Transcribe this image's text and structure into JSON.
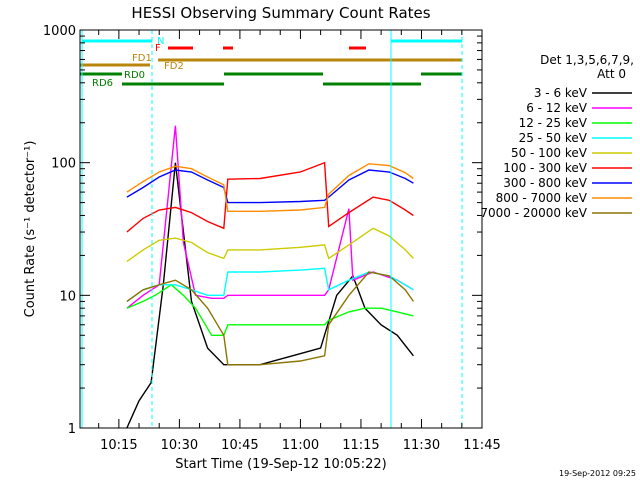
{
  "chart_data": {
    "type": "line",
    "title": "HESSI Observing Summary Count Rates",
    "xlabel": "Start Time (19-Sep-12 10:05:22)",
    "ylabel": "Count Rate (s⁻¹ detector⁻¹)",
    "y_scale": "log",
    "ylim": [
      1,
      1000
    ],
    "xlim": [
      "10:05:22",
      "11:45:00"
    ],
    "x_ticks": [
      "10:15",
      "10:30",
      "10:45",
      "11:00",
      "11:15",
      "11:30",
      "11:45"
    ],
    "y_ticks": [
      "1",
      "10",
      "100",
      "1000"
    ],
    "timestamp": "19-Sep-2012 09:25",
    "legend": {
      "position": "right",
      "header": [
        "Det 1,3,5,6,7,9,",
        "Att 0"
      ]
    },
    "status_bars": [
      {
        "label": "N",
        "color": "#00ffff"
      },
      {
        "label": "F",
        "color": "#ff0000"
      },
      {
        "label": "FD1",
        "color": "#b8860b"
      },
      {
        "label": "FD2",
        "color": "#b8860b"
      },
      {
        "label": "RD0",
        "color": "#008000"
      },
      {
        "label": "RD6",
        "color": "#008000"
      }
    ],
    "series": [
      {
        "name": "3 - 6 keV",
        "color": "#000000",
        "points": [
          [
            "10:17",
            1
          ],
          [
            "10:20",
            1.6
          ],
          [
            "10:23",
            2.2
          ],
          [
            "10:26",
            12
          ],
          [
            "10:29",
            100
          ],
          [
            "10:33",
            9
          ],
          [
            "10:37",
            4
          ],
          [
            "10:41",
            3
          ],
          [
            "10:44",
            3
          ],
          [
            "10:50",
            3
          ],
          [
            "10:58",
            3.5
          ],
          [
            "11:05",
            4
          ],
          [
            "11:09",
            10
          ],
          [
            "11:13",
            14
          ],
          [
            "11:16",
            8
          ],
          [
            "11:20",
            6
          ],
          [
            "11:24",
            5
          ],
          [
            "11:28",
            3.5
          ]
        ]
      },
      {
        "name": "6 - 12 keV",
        "color": "#ff00ff",
        "points": [
          [
            "10:17",
            8
          ],
          [
            "10:21",
            10
          ],
          [
            "10:25",
            12
          ],
          [
            "10:29",
            190
          ],
          [
            "10:31",
            25
          ],
          [
            "10:34",
            10
          ],
          [
            "10:38",
            9.5
          ],
          [
            "10:41",
            9.5
          ],
          [
            "10:42",
            10
          ],
          [
            "10:50",
            10
          ],
          [
            "11:00",
            10
          ],
          [
            "11:06",
            10
          ],
          [
            "11:07",
            11
          ],
          [
            "11:12",
            45
          ],
          [
            "11:13",
            13
          ],
          [
            "11:18",
            15
          ],
          [
            "11:24",
            13
          ],
          [
            "11:28",
            11
          ]
        ]
      },
      {
        "name": "12 - 25 keV",
        "color": "#00ff00",
        "points": [
          [
            "10:17",
            8
          ],
          [
            "10:21",
            9
          ],
          [
            "10:24",
            10
          ],
          [
            "10:28",
            12
          ],
          [
            "10:31",
            10
          ],
          [
            "10:34",
            8
          ],
          [
            "10:38",
            5
          ],
          [
            "10:41",
            5
          ],
          [
            "10:42",
            6
          ],
          [
            "10:50",
            6
          ],
          [
            "11:00",
            6
          ],
          [
            "11:06",
            6
          ],
          [
            "11:07",
            6.5
          ],
          [
            "11:12",
            7.5
          ],
          [
            "11:16",
            8
          ],
          [
            "11:20",
            8
          ],
          [
            "11:24",
            7.5
          ],
          [
            "11:28",
            7
          ]
        ]
      },
      {
        "name": "25 - 50 keV",
        "color": "#00ffff",
        "points": [
          [
            "10:17",
            9
          ],
          [
            "10:21",
            11
          ],
          [
            "10:25",
            12
          ],
          [
            "10:29",
            12
          ],
          [
            "10:33",
            11
          ],
          [
            "10:37",
            10
          ],
          [
            "10:41",
            10
          ],
          [
            "10:42",
            15
          ],
          [
            "10:50",
            15
          ],
          [
            "11:00",
            15.5
          ],
          [
            "11:06",
            16
          ],
          [
            "11:07",
            11
          ],
          [
            "11:12",
            13
          ],
          [
            "11:17",
            15
          ],
          [
            "11:22",
            14
          ],
          [
            "11:26",
            12
          ],
          [
            "11:28",
            11
          ]
        ]
      },
      {
        "name": "50 - 100 keV",
        "color": "#cccc00",
        "points": [
          [
            "10:17",
            18
          ],
          [
            "10:21",
            22
          ],
          [
            "10:25",
            26
          ],
          [
            "10:29",
            27
          ],
          [
            "10:33",
            25
          ],
          [
            "10:37",
            21
          ],
          [
            "10:41",
            19
          ],
          [
            "10:42",
            22
          ],
          [
            "10:50",
            22
          ],
          [
            "11:00",
            23
          ],
          [
            "11:06",
            24
          ],
          [
            "11:07",
            19
          ],
          [
            "11:12",
            24
          ],
          [
            "11:18",
            32
          ],
          [
            "11:22",
            28
          ],
          [
            "11:26",
            22
          ],
          [
            "11:28",
            19
          ]
        ]
      },
      {
        "name": "100 - 300 keV",
        "color": "#ff0000",
        "points": [
          [
            "10:17",
            30
          ],
          [
            "10:21",
            38
          ],
          [
            "10:25",
            44
          ],
          [
            "10:29",
            46
          ],
          [
            "10:33",
            42
          ],
          [
            "10:37",
            36
          ],
          [
            "10:41",
            32
          ],
          [
            "10:42",
            75
          ],
          [
            "10:50",
            76
          ],
          [
            "11:00",
            85
          ],
          [
            "11:06",
            100
          ],
          [
            "11:07",
            33
          ],
          [
            "11:12",
            42
          ],
          [
            "11:18",
            55
          ],
          [
            "11:22",
            52
          ],
          [
            "11:26",
            44
          ],
          [
            "11:28",
            40
          ]
        ]
      },
      {
        "name": "300 - 800 keV",
        "color": "#0000ff",
        "points": [
          [
            "10:17",
            55
          ],
          [
            "10:21",
            65
          ],
          [
            "10:25",
            78
          ],
          [
            "10:29",
            88
          ],
          [
            "10:33",
            85
          ],
          [
            "10:37",
            74
          ],
          [
            "10:41",
            65
          ],
          [
            "10:42",
            50
          ],
          [
            "10:50",
            50
          ],
          [
            "11:00",
            51
          ],
          [
            "11:06",
            52
          ],
          [
            "11:07",
            55
          ],
          [
            "11:12",
            74
          ],
          [
            "11:17",
            88
          ],
          [
            "11:22",
            85
          ],
          [
            "11:26",
            76
          ],
          [
            "11:28",
            70
          ]
        ]
      },
      {
        "name": "800 - 7000 keV",
        "color": "#ff8c00",
        "points": [
          [
            "10:17",
            60
          ],
          [
            "10:21",
            72
          ],
          [
            "10:25",
            85
          ],
          [
            "10:29",
            94
          ],
          [
            "10:33",
            90
          ],
          [
            "10:37",
            78
          ],
          [
            "10:41",
            68
          ],
          [
            "10:42",
            43
          ],
          [
            "10:50",
            43
          ],
          [
            "11:00",
            44
          ],
          [
            "11:06",
            46
          ],
          [
            "11:07",
            58
          ],
          [
            "11:12",
            80
          ],
          [
            "11:17",
            98
          ],
          [
            "11:22",
            95
          ],
          [
            "11:26",
            84
          ],
          [
            "11:28",
            76
          ]
        ]
      },
      {
        "name": "7000 - 20000 keV",
        "color": "#8b7500",
        "points": [
          [
            "10:17",
            9
          ],
          [
            "10:21",
            11
          ],
          [
            "10:25",
            12
          ],
          [
            "10:29",
            13
          ],
          [
            "10:33",
            11
          ],
          [
            "10:37",
            8
          ],
          [
            "10:41",
            5
          ],
          [
            "10:42",
            3
          ],
          [
            "10:50",
            3
          ],
          [
            "11:00",
            3.2
          ],
          [
            "11:06",
            3.5
          ],
          [
            "11:07",
            6
          ],
          [
            "11:12",
            10
          ],
          [
            "11:17",
            15
          ],
          [
            "11:22",
            14
          ],
          [
            "11:26",
            11
          ],
          [
            "11:28",
            9
          ]
        ]
      }
    ]
  }
}
